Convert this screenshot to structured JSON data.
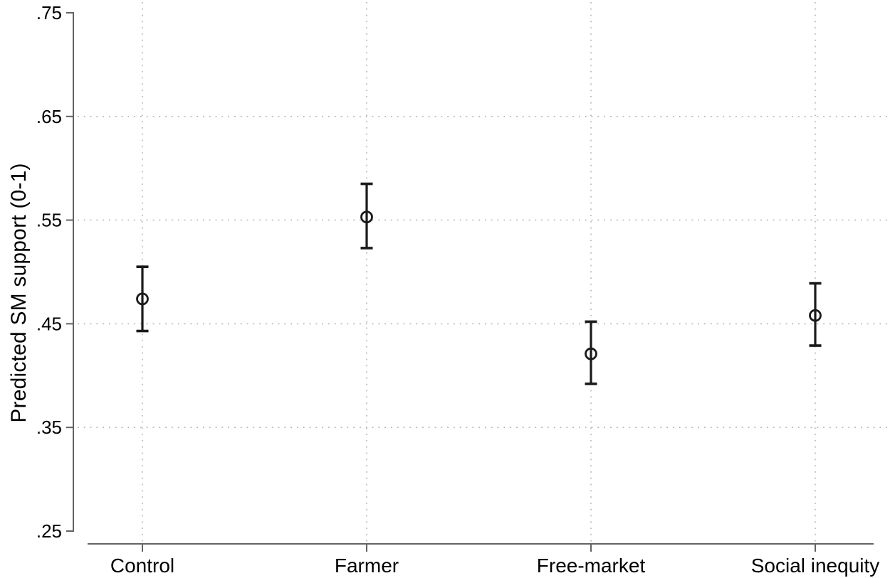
{
  "figure": {
    "background": "#ffffff"
  },
  "chart_data": {
    "type": "scatter",
    "subtype": "point-estimates-with-95ci-errorbars",
    "title": "",
    "xlabel": "",
    "ylabel": "Predicted SM support (0-1)",
    "categories": [
      "Control",
      "Farmer",
      "Free-market",
      "Social inequity"
    ],
    "series": [
      {
        "name": "Predicted SM support",
        "estimates": [
          0.474,
          0.553,
          0.421,
          0.458
        ],
        "ci_low": [
          0.443,
          0.523,
          0.392,
          0.429
        ],
        "ci_high": [
          0.505,
          0.585,
          0.452,
          0.489
        ]
      }
    ],
    "ylim": [
      0.25,
      0.75
    ],
    "yticks": [
      0.75,
      0.65,
      0.55,
      0.45,
      0.35,
      0.25
    ],
    "ytick_labels": [
      ".75",
      ".65",
      ".55",
      ".45",
      ".35",
      ".25"
    ],
    "grid": {
      "horizontal_at": [
        0.65,
        0.55,
        0.45,
        0.35
      ],
      "vertical_per_category": true,
      "style": "dotted"
    },
    "legend": "none",
    "marker": "hollow-circle",
    "colors": {
      "marker": "#1a1a1a",
      "axis": "#636363",
      "grid": "#b4b4b4",
      "text": "#000000"
    }
  }
}
